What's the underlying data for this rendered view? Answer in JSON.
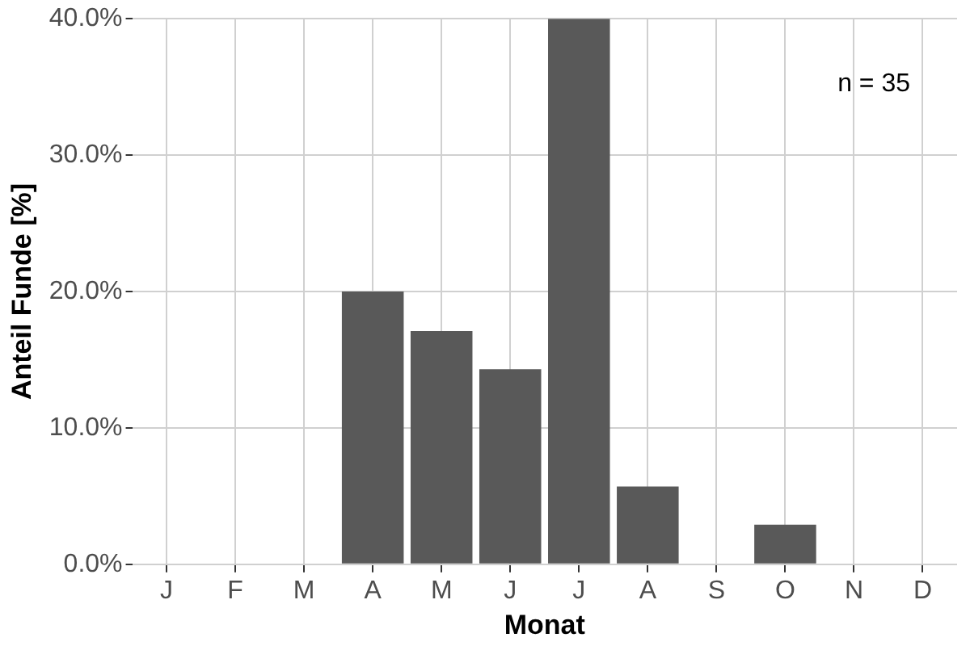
{
  "chart_data": {
    "type": "bar",
    "xlabel": "Monat",
    "ylabel": "Anteil Funde [%]",
    "categories": [
      "J",
      "F",
      "M",
      "A",
      "M",
      "J",
      "J",
      "A",
      "S",
      "O",
      "N",
      "D"
    ],
    "values": [
      0,
      0,
      0,
      20,
      17.1,
      14.3,
      40,
      5.7,
      0,
      2.9,
      0,
      0
    ],
    "color": "#595959",
    "ylim": [
      0,
      40
    ],
    "yticks": [
      {
        "value": 0,
        "label": "0.0%"
      },
      {
        "value": 10,
        "label": "10.0%"
      },
      {
        "value": 20,
        "label": "20.0%"
      },
      {
        "value": 30,
        "label": "30.0%"
      },
      {
        "value": 40,
        "label": "40.0%"
      }
    ],
    "grid": true,
    "annotations": [
      "n = 35"
    ]
  }
}
